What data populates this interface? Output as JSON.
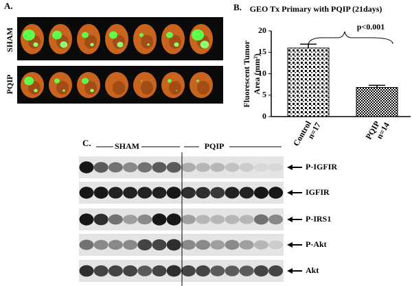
{
  "panel_labels": [
    "A.",
    "B.",
    "C."
  ],
  "panel_a": {
    "rows": [
      "SHAM",
      "PQIP"
    ]
  },
  "chart_data": {
    "type": "bar",
    "title": "GEO Tx Primary with PQIP (21days)",
    "y_label": [
      "Fluorescent Tumor",
      "Area (mm²)"
    ],
    "categories": [
      "Control",
      "PQIP"
    ],
    "sample_sizes": [
      "n=17",
      "n=14"
    ],
    "values": [
      16,
      6.8
    ],
    "errors": [
      0.9,
      0.5
    ],
    "ylim": [
      0,
      20
    ],
    "yticks": [
      0,
      5,
      10,
      15,
      20
    ],
    "annotation": "p<0.001"
  },
  "panel_c": {
    "groups": [
      "SHAM",
      "PQIP"
    ],
    "blots": [
      "P-IGFIR",
      "IGFIR",
      "P-IRS1",
      "P-Akt",
      "Akt"
    ]
  }
}
